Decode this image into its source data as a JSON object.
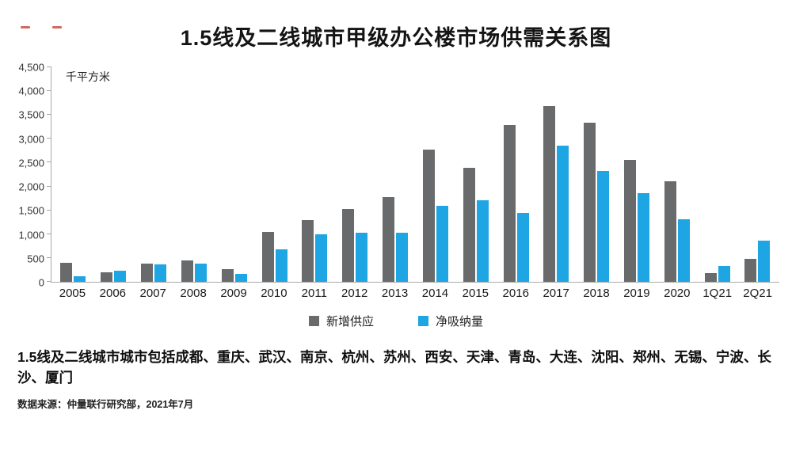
{
  "title": "1.5线及二线城市甲级办公楼市场供需关系图",
  "chart_data": {
    "type": "bar",
    "title": "1.5线及二线城市甲级办公楼市场供需关系图",
    "unit_label": "千平方米",
    "categories": [
      "2005",
      "2006",
      "2007",
      "2008",
      "2009",
      "2010",
      "2011",
      "2012",
      "2013",
      "2014",
      "2015",
      "2016",
      "2017",
      "2018",
      "2019",
      "2020",
      "1Q21",
      "2Q21"
    ],
    "series": [
      {
        "name": "新增供应",
        "color": "#696a6c",
        "values": [
          400,
          200,
          390,
          450,
          260,
          1050,
          1290,
          1530,
          1770,
          2780,
          2390,
          3280,
          3680,
          3330,
          2560,
          2110,
          190,
          490
        ]
      },
      {
        "name": "净吸纳量",
        "color": "#1ea5e3",
        "values": [
          110,
          230,
          370,
          380,
          160,
          680,
          1000,
          1030,
          1030,
          1600,
          1710,
          1440,
          2850,
          2320,
          1860,
          1320,
          340,
          860
        ]
      }
    ],
    "ylim": [
      0,
      4500
    ],
    "ytick_step": 500,
    "grid": false,
    "legend_position": "bottom"
  },
  "footnote": {
    "lead": "1.5线及二线城市城市",
    "body": "包括成都、重庆、武汉、南京、杭州、苏州、西安、天津、青岛、大连、沈阳、郑州、无锡、宁波、长沙、厦门"
  },
  "source_note": "数据来源：仲量联行研究部，2021年7月"
}
